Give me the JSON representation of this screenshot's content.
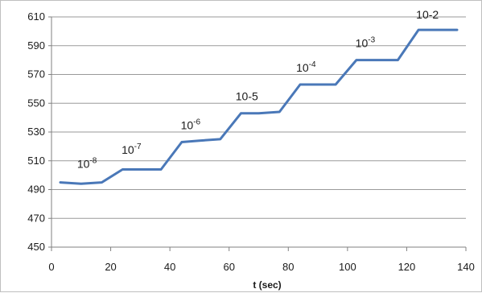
{
  "chart_data": {
    "type": "line",
    "title": "",
    "xlabel": "t (sec)",
    "ylabel": "",
    "xlim": [
      0,
      140
    ],
    "ylim": [
      450,
      610
    ],
    "x_ticks": [
      "0",
      "20",
      "40",
      "60",
      "80",
      "100",
      "120",
      "140"
    ],
    "y_ticks": [
      "450",
      "470",
      "490",
      "510",
      "530",
      "550",
      "570",
      "590",
      "610"
    ],
    "grid": {
      "horizontal": true,
      "vertical": false
    },
    "line_color": "#4a78b8",
    "series": [
      {
        "x": [
          3,
          10,
          17,
          24,
          30,
          37,
          44,
          50,
          57,
          64,
          70,
          77,
          84,
          90,
          96,
          103,
          110,
          117,
          124,
          130,
          137
        ],
        "y": [
          495,
          494,
          495,
          504,
          504,
          504,
          523,
          524,
          525,
          543,
          543,
          544,
          563,
          563,
          563,
          580,
          580,
          580,
          601,
          601,
          601
        ]
      }
    ],
    "annotations": [
      {
        "base": "10",
        "sup": "-8",
        "x": 12,
        "y": 505
      },
      {
        "base": "10",
        "sup": "-7",
        "x": 27,
        "y": 515
      },
      {
        "base": "10",
        "sup": "-6",
        "x": 47,
        "y": 532
      },
      {
        "base": "10-5",
        "sup": "",
        "x": 66,
        "y": 552
      },
      {
        "base": "10",
        "sup": "-4",
        "x": 86,
        "y": 572
      },
      {
        "base": "10",
        "sup": "-3",
        "x": 106,
        "y": 589
      },
      {
        "base": "10-2",
        "sup": "",
        "x": 127,
        "y": 609
      }
    ]
  }
}
